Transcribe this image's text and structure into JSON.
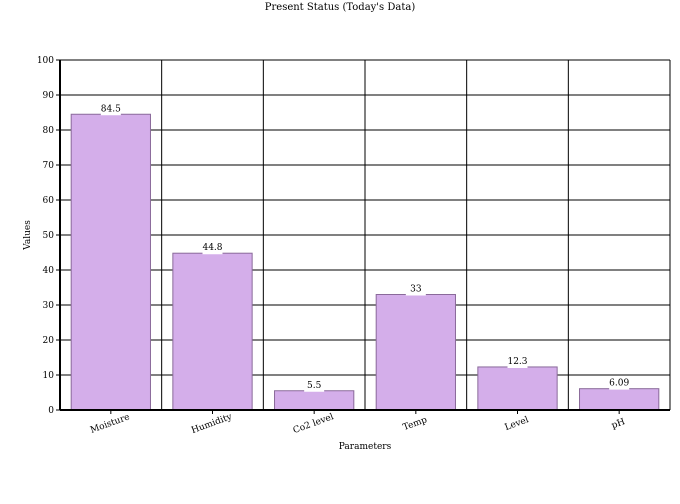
{
  "chart_data": {
    "type": "bar",
    "title": "Present Status (Today's Data)",
    "xlabel": "Parameters",
    "ylabel": "Values",
    "categories": [
      "Moisture",
      "Humidity",
      "Co2 level",
      "Temp",
      "Level",
      "pH"
    ],
    "values": [
      84.5,
      44.8,
      5.5,
      33,
      12.3,
      6.09
    ],
    "value_labels": [
      "84.5",
      "44.8",
      "5.5",
      "33",
      "12.3",
      "6.09"
    ],
    "ylim": [
      0,
      100
    ],
    "yticks": [
      0,
      10,
      20,
      30,
      40,
      50,
      60,
      70,
      80,
      90,
      100
    ],
    "grid": true,
    "bar_color": "#d4aeea",
    "bar_edge_color": "#8a6a9a"
  }
}
